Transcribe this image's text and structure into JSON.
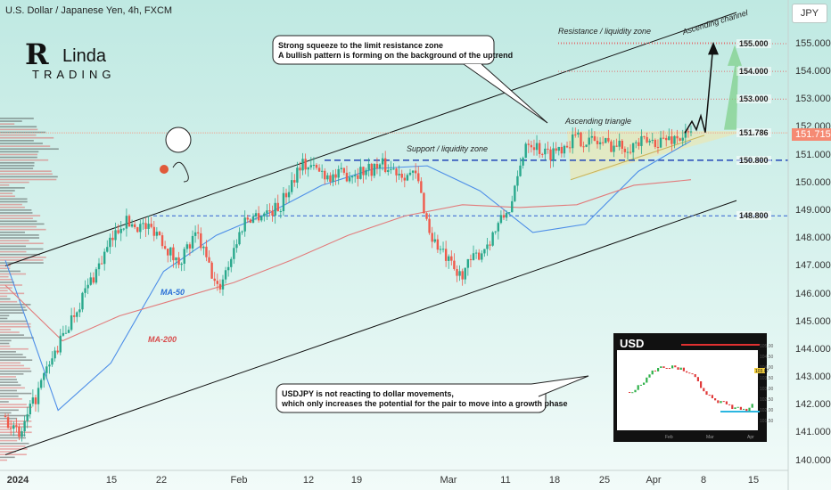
{
  "header": {
    "title": "U.S. Dollar / Japanese Yen, 4h, FXCM"
  },
  "currency_button": "JPY",
  "logo": {
    "text": "RLinda Trading"
  },
  "annotations": {
    "callout_top_line1": "Strong squeeze to the limit resistance zone",
    "callout_top_line2": "A bullish pattern is forming on the background of the uptrend",
    "callout_bottom_line1": "USDJPY is not reacting to dollar movements,",
    "callout_bottom_line2": "which only increases the potential for the pair to move into a growth phase",
    "resistance_zone": "Resistance / liquidity zone",
    "ascending_channel": "Ascending channel",
    "ascending_triangle": "Ascending triangle",
    "support_zone": "Support / liquidity zone",
    "ma50": "MA-50",
    "ma200": "MA-200"
  },
  "levels": [
    {
      "value": 155.0,
      "label": "155.000"
    },
    {
      "value": 154.0,
      "label": "154.000"
    },
    {
      "value": 153.0,
      "label": "153.000"
    },
    {
      "value": 151.786,
      "label": "151.786"
    },
    {
      "value": 150.8,
      "label": "150.800"
    },
    {
      "value": 148.8,
      "label": "148.800"
    }
  ],
  "current_price": {
    "value": 151.715,
    "label": "151.715"
  },
  "colors": {
    "up": "#29a88c",
    "down": "#f05a4b",
    "ma50": "#4d8ee8",
    "ma200": "#e27a7a",
    "badge": "#f58a73"
  },
  "inset": {
    "title": "USD",
    "price_labels": [
      "105.00",
      "104.50",
      "104.00",
      "103.50",
      "103.00",
      "102.50",
      "102.00",
      "101.50"
    ],
    "current": "103.87",
    "months": [
      "Feb",
      "Mar",
      "Apr"
    ]
  },
  "chart_data": {
    "type": "candlestick",
    "title": "U.S. Dollar / Japanese Yen, 4h, FXCM",
    "ylim": [
      139.7,
      155.8
    ],
    "yticks": [
      140.0,
      141.0,
      142.0,
      143.0,
      144.0,
      145.0,
      146.0,
      147.0,
      148.0,
      149.0,
      150.0,
      151.0,
      152.0,
      153.0,
      154.0,
      155.0
    ],
    "ytick_labels": [
      "140.000",
      "141.000",
      "142.000",
      "143.000",
      "144.000",
      "145.000",
      "146.000",
      "147.000",
      "148.000",
      "149.000",
      "150.000",
      "151.000",
      "152.000",
      "153.000",
      "154.000",
      "155.000"
    ],
    "xticks": [
      "2024",
      "15",
      "22",
      "Feb",
      "12",
      "19",
      "Mar",
      "11",
      "18",
      "25",
      "Apr",
      "8",
      "15"
    ],
    "key_points": [
      {
        "t": 0.0,
        "p": 141.6
      },
      {
        "t": 0.02,
        "p": 140.8
      },
      {
        "t": 0.06,
        "p": 143.2
      },
      {
        "t": 0.1,
        "p": 145.3
      },
      {
        "t": 0.17,
        "p": 148.6
      },
      {
        "t": 0.22,
        "p": 148.3
      },
      {
        "t": 0.25,
        "p": 147.1
      },
      {
        "t": 0.28,
        "p": 148.1
      },
      {
        "t": 0.31,
        "p": 146.1
      },
      {
        "t": 0.35,
        "p": 148.7
      },
      {
        "t": 0.4,
        "p": 149.1
      },
      {
        "t": 0.43,
        "p": 150.7
      },
      {
        "t": 0.48,
        "p": 150.2
      },
      {
        "t": 0.55,
        "p": 150.6
      },
      {
        "t": 0.6,
        "p": 150.2
      },
      {
        "t": 0.62,
        "p": 148.1
      },
      {
        "t": 0.66,
        "p": 146.6
      },
      {
        "t": 0.7,
        "p": 147.7
      },
      {
        "t": 0.74,
        "p": 149.3
      },
      {
        "t": 0.76,
        "p": 151.6
      },
      {
        "t": 0.79,
        "p": 151.0
      },
      {
        "t": 0.83,
        "p": 151.6
      },
      {
        "t": 0.9,
        "p": 151.3
      },
      {
        "t": 1.0,
        "p": 151.7
      }
    ],
    "ma50": [
      147.2,
      141.8,
      143.5,
      146.8,
      148.1,
      148.9,
      149.9,
      150.5,
      150.6,
      149.7,
      148.2,
      148.5,
      150.4,
      151.5
    ],
    "ma200": [
      146.3,
      144.3,
      145.2,
      145.8,
      146.4,
      147.2,
      148.1,
      148.8,
      149.2,
      149.1,
      149.2,
      149.9,
      150.1
    ],
    "projection": [
      151.78,
      152.2,
      151.9,
      152.4,
      151.8,
      155.0
    ],
    "channel": {
      "upper": [
        [
          0,
          147.0
        ],
        [
          1,
          155.7
        ]
      ],
      "lower": [
        [
          0,
          140.2
        ],
        [
          1,
          149.4
        ]
      ]
    }
  }
}
